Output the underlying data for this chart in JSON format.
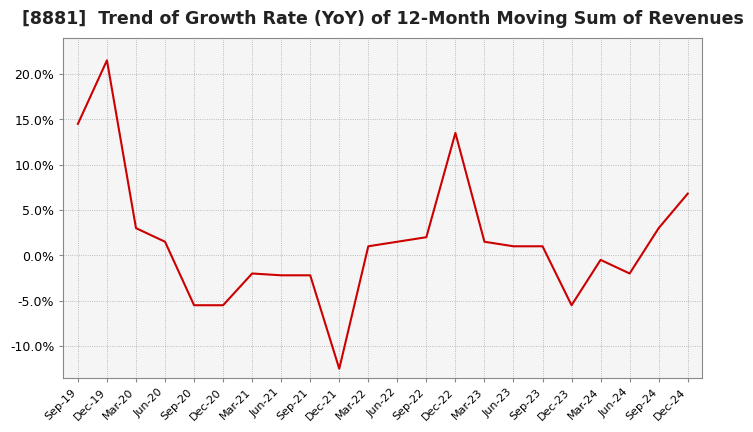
{
  "title": "[8881]  Trend of Growth Rate (YoY) of 12-Month Moving Sum of Revenues",
  "title_fontsize": 12.5,
  "line_color": "#cc0000",
  "background_color": "#ffffff",
  "plot_bg_color": "#f5f5f5",
  "grid_color": "#aaaaaa",
  "border_color": "#888888",
  "ylim": [
    -0.135,
    0.24
  ],
  "yticks": [
    -0.1,
    -0.05,
    0.0,
    0.05,
    0.1,
    0.15,
    0.2
  ],
  "xlabels": [
    "Sep-19",
    "Dec-19",
    "Mar-20",
    "Jun-20",
    "Sep-20",
    "Dec-20",
    "Mar-21",
    "Jun-21",
    "Sep-21",
    "Dec-21",
    "Mar-22",
    "Jun-22",
    "Sep-22",
    "Dec-22",
    "Mar-23",
    "Jun-23",
    "Sep-23",
    "Dec-23",
    "Mar-24",
    "Jun-24",
    "Sep-24",
    "Dec-24"
  ],
  "yvalues": [
    0.145,
    0.215,
    0.03,
    0.015,
    -0.055,
    -0.055,
    -0.02,
    -0.022,
    -0.022,
    -0.125,
    0.01,
    0.015,
    0.02,
    0.135,
    0.015,
    0.01,
    0.01,
    -0.055,
    -0.005,
    -0.02,
    0.03,
    0.068
  ]
}
